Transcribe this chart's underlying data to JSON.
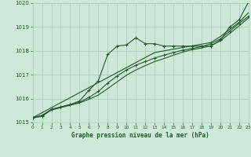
{
  "xlabel": "Graphe pression niveau de la mer (hPa)",
  "xlim": [
    0,
    23
  ],
  "ylim": [
    1015,
    1020
  ],
  "yticks": [
    1015,
    1016,
    1017,
    1018,
    1019,
    1020
  ],
  "xticks": [
    0,
    1,
    2,
    3,
    4,
    5,
    6,
    7,
    8,
    9,
    10,
    11,
    12,
    13,
    14,
    15,
    16,
    17,
    18,
    19,
    20,
    21,
    22,
    23
  ],
  "background_color": "#cde8d8",
  "grid_color": "#a8cebb",
  "line_color": "#1e5c28",
  "series_main": [
    1015.2,
    1015.25,
    1015.55,
    1015.65,
    1015.75,
    1015.9,
    1016.35,
    1016.75,
    1017.85,
    1018.2,
    1018.25,
    1018.55,
    1018.3,
    1018.3,
    1018.2,
    1018.2,
    1018.2,
    1018.2,
    1018.2,
    1018.2,
    1018.45,
    1019.0,
    1019.3,
    1020.05
  ],
  "series_smooth1": [
    1015.2,
    1015.3,
    1015.55,
    1015.65,
    1015.75,
    1015.85,
    1016.05,
    1016.3,
    1016.65,
    1016.95,
    1017.2,
    1017.4,
    1017.55,
    1017.7,
    1017.82,
    1017.93,
    1018.03,
    1018.1,
    1018.18,
    1018.3,
    1018.5,
    1018.82,
    1019.15,
    1019.45
  ],
  "series_smooth2": [
    1015.2,
    1015.28,
    1015.52,
    1015.62,
    1015.72,
    1015.82,
    1015.97,
    1016.15,
    1016.42,
    1016.7,
    1016.98,
    1017.2,
    1017.38,
    1017.55,
    1017.68,
    1017.82,
    1017.95,
    1018.05,
    1018.12,
    1018.22,
    1018.42,
    1018.73,
    1019.05,
    1019.38
  ],
  "series_linear": [
    1015.2,
    1015.41,
    1015.62,
    1015.83,
    1016.04,
    1016.25,
    1016.46,
    1016.67,
    1016.88,
    1017.09,
    1017.3,
    1017.51,
    1017.72,
    1017.93,
    1018.0,
    1018.07,
    1018.14,
    1018.21,
    1018.28,
    1018.35,
    1018.6,
    1018.9,
    1019.2,
    1019.6
  ]
}
